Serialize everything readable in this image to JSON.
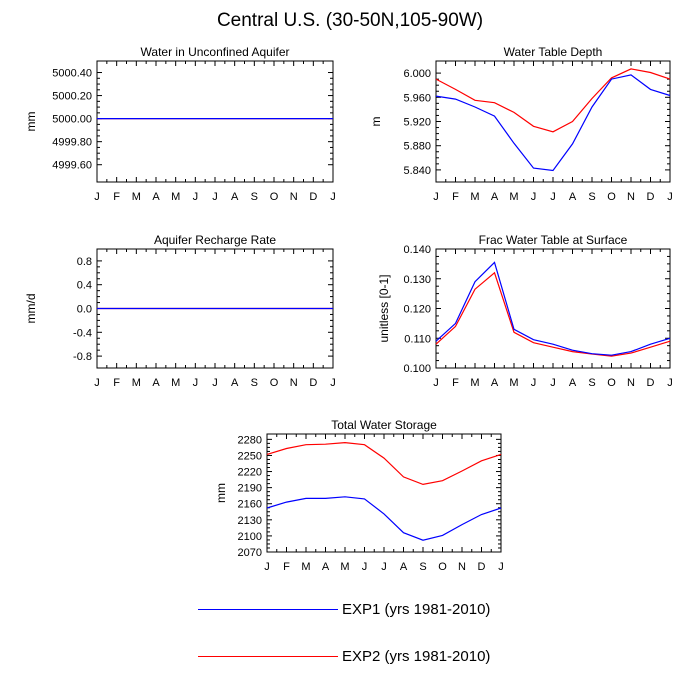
{
  "figure": {
    "title": "Central U.S. (30-50N,105-90W)",
    "series_colors": {
      "EXP1": "#0000ff",
      "EXP2": "#ff0000"
    }
  },
  "legend": [
    {
      "label": "EXP1 (yrs 1981-2010)",
      "color": "#0000ff"
    },
    {
      "label": "EXP2 (yrs 1981-2010)",
      "color": "#ff0000"
    }
  ],
  "chart_data": [
    {
      "type": "line",
      "title": "Water in Unconfined Aquifer",
      "ylabel": "mm",
      "xlabel": "",
      "categories": [
        "J",
        "F",
        "M",
        "A",
        "M",
        "J",
        "J",
        "A",
        "S",
        "O",
        "N",
        "D",
        "J"
      ],
      "ylim": [
        4999.45,
        5000.5
      ],
      "yticks": [
        4999.6,
        4999.8,
        5000.0,
        5000.2,
        5000.4
      ],
      "ytick_labels": [
        "4999.60",
        "4999.80",
        "5000.00",
        "5000.20",
        "5000.40"
      ],
      "series": [
        {
          "name": "EXP1 (yrs 1981-2010)",
          "values": [
            5000.0,
            5000.0,
            5000.0,
            5000.0,
            5000.0,
            5000.0,
            5000.0,
            5000.0,
            5000.0,
            5000.0,
            5000.0,
            5000.0,
            5000.0
          ]
        },
        {
          "name": "EXP2 (yrs 1981-2010)",
          "values": [
            5000.0,
            5000.0,
            5000.0,
            5000.0,
            5000.0,
            5000.0,
            5000.0,
            5000.0,
            5000.0,
            5000.0,
            5000.0,
            5000.0,
            5000.0
          ]
        }
      ]
    },
    {
      "type": "line",
      "title": "Water Table Depth",
      "ylabel": "m",
      "xlabel": "",
      "categories": [
        "J",
        "F",
        "M",
        "A",
        "M",
        "J",
        "J",
        "A",
        "S",
        "O",
        "N",
        "D",
        "J"
      ],
      "ylim": [
        5.82,
        6.02
      ],
      "yticks": [
        5.84,
        5.88,
        5.92,
        5.96,
        6.0
      ],
      "ytick_labels": [
        "5.840",
        "5.880",
        "5.920",
        "5.960",
        "6.000"
      ],
      "series": [
        {
          "name": "EXP1 (yrs 1981-2010)",
          "values": [
            5.962,
            5.957,
            5.944,
            5.929,
            5.884,
            5.843,
            5.839,
            5.883,
            5.944,
            5.99,
            5.997,
            5.973,
            5.963
          ]
        },
        {
          "name": "EXP2 (yrs 1981-2010)",
          "values": [
            5.99,
            5.973,
            5.955,
            5.951,
            5.935,
            5.912,
            5.903,
            5.92,
            5.958,
            5.992,
            6.007,
            6.001,
            5.99
          ]
        }
      ]
    },
    {
      "type": "line",
      "title": "Aquifer Recharge Rate",
      "ylabel": "mm/d",
      "xlabel": "",
      "categories": [
        "J",
        "F",
        "M",
        "A",
        "M",
        "J",
        "J",
        "A",
        "S",
        "O",
        "N",
        "D",
        "J"
      ],
      "ylim": [
        -1.0,
        1.0
      ],
      "yticks": [
        -0.8,
        -0.4,
        0.0,
        0.4,
        0.8
      ],
      "ytick_labels": [
        "-0.8",
        "-0.4",
        "0.0",
        "0.4",
        "0.8"
      ],
      "series": [
        {
          "name": "EXP1 (yrs 1981-2010)",
          "values": [
            0,
            0,
            0,
            0,
            0,
            0,
            0,
            0,
            0,
            0,
            0,
            0,
            0
          ]
        },
        {
          "name": "EXP2 (yrs 1981-2010)",
          "values": [
            0,
            0,
            0,
            0,
            0,
            0,
            0,
            0,
            0,
            0,
            0,
            0,
            0
          ]
        }
      ]
    },
    {
      "type": "line",
      "title": "Frac Water Table at Surface",
      "ylabel": "unitless [0-1]",
      "xlabel": "",
      "categories": [
        "J",
        "F",
        "M",
        "A",
        "M",
        "J",
        "J",
        "A",
        "S",
        "O",
        "N",
        "D",
        "J"
      ],
      "ylim": [
        0.1,
        0.14
      ],
      "yticks": [
        0.1,
        0.11,
        0.12,
        0.13,
        0.14
      ],
      "ytick_labels": [
        "0.100",
        "0.110",
        "0.120",
        "0.130",
        "0.140"
      ],
      "series": [
        {
          "name": "EXP1 (yrs 1981-2010)",
          "values": [
            0.109,
            0.115,
            0.129,
            0.1355,
            0.113,
            0.1095,
            0.108,
            0.106,
            0.1048,
            0.1043,
            0.1055,
            0.108,
            0.11
          ]
        },
        {
          "name": "EXP2 (yrs 1981-2010)",
          "values": [
            0.108,
            0.114,
            0.1265,
            0.132,
            0.112,
            0.1085,
            0.107,
            0.1055,
            0.1047,
            0.104,
            0.105,
            0.107,
            0.109
          ]
        }
      ]
    },
    {
      "type": "line",
      "title": "Total Water Storage",
      "ylabel": "mm",
      "xlabel": "",
      "categories": [
        "J",
        "F",
        "M",
        "A",
        "M",
        "J",
        "J",
        "A",
        "S",
        "O",
        "N",
        "D",
        "J"
      ],
      "ylim": [
        2070,
        2290
      ],
      "yticks": [
        2070,
        2100,
        2130,
        2160,
        2190,
        2220,
        2250,
        2280
      ],
      "ytick_labels": [
        "2070",
        "2100",
        "2130",
        "2160",
        "2190",
        "2220",
        "2250",
        "2280"
      ],
      "series": [
        {
          "name": "EXP1 (yrs 1981-2010)",
          "values": [
            2152,
            2163,
            2170,
            2170,
            2173,
            2169,
            2141,
            2106,
            2092,
            2101,
            2121,
            2140,
            2152
          ]
        },
        {
          "name": "EXP2 (yrs 1981-2010)",
          "values": [
            2252,
            2263,
            2270,
            2271,
            2274,
            2270,
            2245,
            2210,
            2196,
            2203,
            2221,
            2240,
            2252
          ]
        }
      ]
    }
  ]
}
